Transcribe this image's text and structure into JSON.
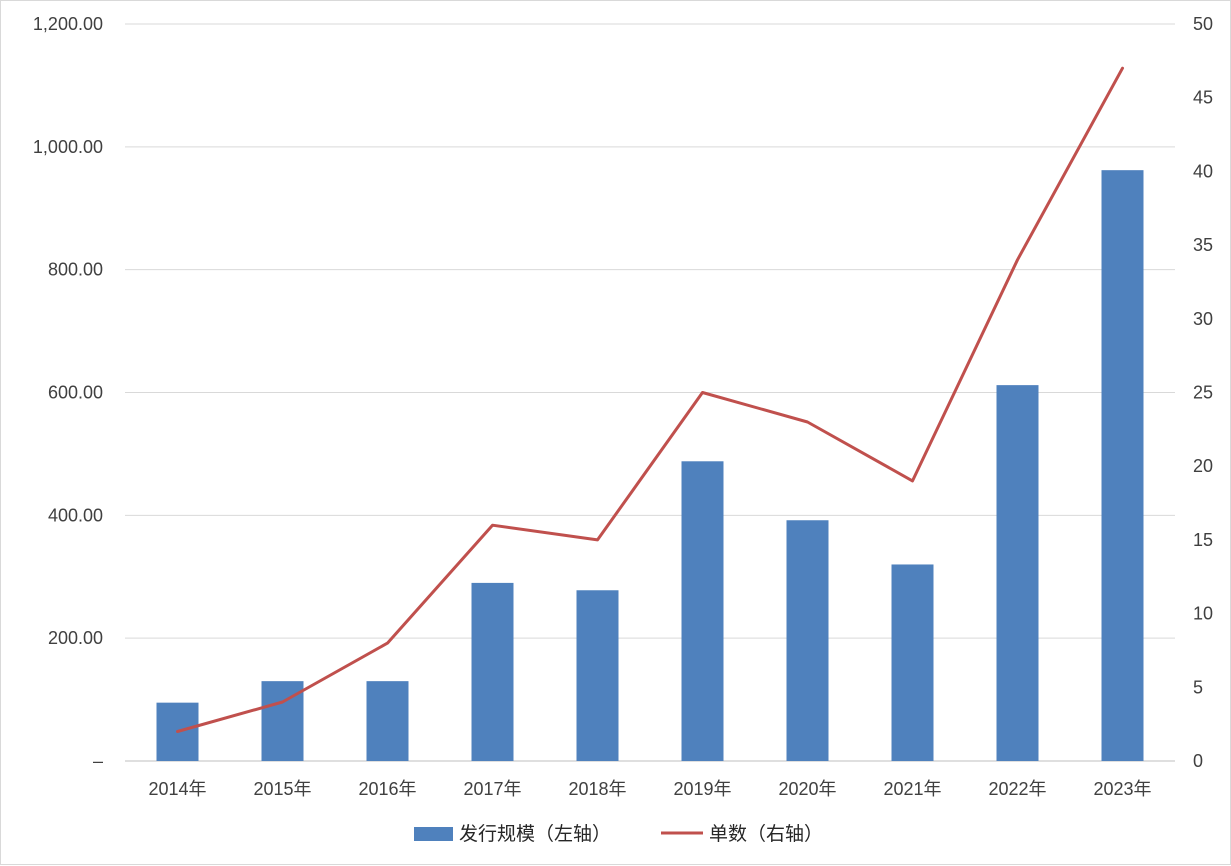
{
  "chart_data": {
    "type": "bar+line",
    "title": "",
    "categories": [
      "2014年",
      "2015年",
      "2016年",
      "2017年",
      "2018年",
      "2019年",
      "2020年",
      "2021年",
      "2022年",
      "2023年"
    ],
    "series": [
      {
        "name": "发行规模（左轴）",
        "type": "bar",
        "axis": "left",
        "color": "#4f81bd",
        "values": [
          95,
          130,
          130,
          290,
          278,
          488,
          392,
          320,
          612,
          962
        ]
      },
      {
        "name": "单数（右轴）",
        "type": "line",
        "axis": "right",
        "color": "#c0504d",
        "values": [
          2,
          4,
          8,
          16,
          15,
          25,
          23,
          19,
          34,
          47
        ]
      }
    ],
    "y_left": {
      "ylim": [
        0,
        1200
      ],
      "ticks": [
        0,
        200,
        400,
        600,
        800,
        1000,
        1200
      ],
      "tick_labels": [
        "–",
        "200.00",
        "400.00",
        "600.00",
        "800.00",
        "1,000.00",
        "1,200.00"
      ]
    },
    "y_right": {
      "ylim": [
        0,
        50
      ],
      "ticks": [
        0,
        5,
        10,
        15,
        20,
        25,
        30,
        35,
        40,
        45,
        50
      ],
      "tick_labels": [
        "0",
        "5",
        "10",
        "15",
        "20",
        "25",
        "30",
        "35",
        "40",
        "45",
        "50"
      ]
    },
    "grid": true,
    "legend": {
      "position": "bottom",
      "items": [
        "发行规模（左轴）",
        "单数（右轴）"
      ]
    }
  }
}
